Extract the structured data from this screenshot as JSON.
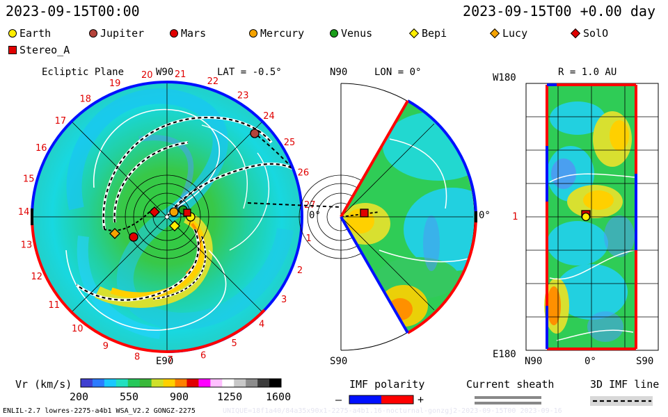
{
  "header": {
    "date_left": "2023-09-15T00:00",
    "date_right": "2023-09-15T00 +0.00 day"
  },
  "legend": [
    {
      "name": "Earth",
      "shape": "circle",
      "color": "#ffee00"
    },
    {
      "name": "Jupiter",
      "shape": "circle",
      "color": "#b5433a"
    },
    {
      "name": "Mars",
      "shape": "circle",
      "color": "#e00000"
    },
    {
      "name": "Mercury",
      "shape": "circle",
      "color": "#f5a300"
    },
    {
      "name": "Venus",
      "shape": "circle",
      "color": "#1a9e1a"
    },
    {
      "name": "Bepi",
      "shape": "diamond",
      "color": "#ffee00"
    },
    {
      "name": "Lucy",
      "shape": "diamond",
      "color": "#f5a300"
    },
    {
      "name": "SolO",
      "shape": "diamond",
      "color": "#e00000"
    },
    {
      "name": "Stereo_A",
      "shape": "square",
      "color": "#e00000"
    }
  ],
  "panels": {
    "ecliptic": {
      "title": "Ecliptic Plane",
      "top_label": "W90",
      "bottom_label": "E90",
      "lat_label": "LAT = -0.5°",
      "right_label": "0°",
      "sectors": [
        "20",
        "21",
        "22",
        "23",
        "24",
        "25",
        "26",
        "27",
        "1",
        "2",
        "3",
        "4",
        "5",
        "6",
        "7",
        "8",
        "9",
        "10",
        "11",
        "12",
        "13",
        "14",
        "15",
        "16",
        "17",
        "18",
        "19"
      ]
    },
    "meridional": {
      "top_label": "N90",
      "bottom_label": "S90",
      "lon_label": "LON = 0°",
      "right_label": "0°"
    },
    "map": {
      "r_label": "R = 1.0 AU",
      "top_left": "W180",
      "bottom_left": "E180",
      "mid_left": "1",
      "x_left": "N90",
      "x_mid": "0°",
      "x_right": "S90"
    }
  },
  "chart_data": {
    "type": "heatmap",
    "title": "Vr (km/s)",
    "colorbar": {
      "label": "Vr (km/s)",
      "ticks": [
        200,
        550,
        900,
        1250,
        1600
      ],
      "range": [
        200,
        1600
      ],
      "colors": [
        "#3f3fd0",
        "#2b7bff",
        "#19c8ff",
        "#22e0c0",
        "#25c85a",
        "#3ab83a",
        "#cfe02a",
        "#ffd000",
        "#ff8000",
        "#e00000",
        "#ff00ff",
        "#ffbfff",
        "#ffffff",
        "#c8c8c8",
        "#8c8c8c",
        "#3c3c3c",
        "#000000"
      ]
    },
    "imf_polarity": {
      "label": "IMF polarity",
      "minus": "–",
      "plus": "+",
      "neg_color": "#0010ff",
      "pos_color": "#ff0000"
    },
    "current_sheath": {
      "label": "Current sheath"
    },
    "imf_line": {
      "label": "3D IMF line"
    }
  },
  "footer": {
    "left": "ENLIL-2.7 lowres-2275-a4b1 WSA_V2.2 GONGZ-2275",
    "right": "UNIQUE=18f1a40/84a35x90x1-2275-a4b1.16-nocturnal-gonzgj2-2023-09-15T00 2023-09-16"
  }
}
